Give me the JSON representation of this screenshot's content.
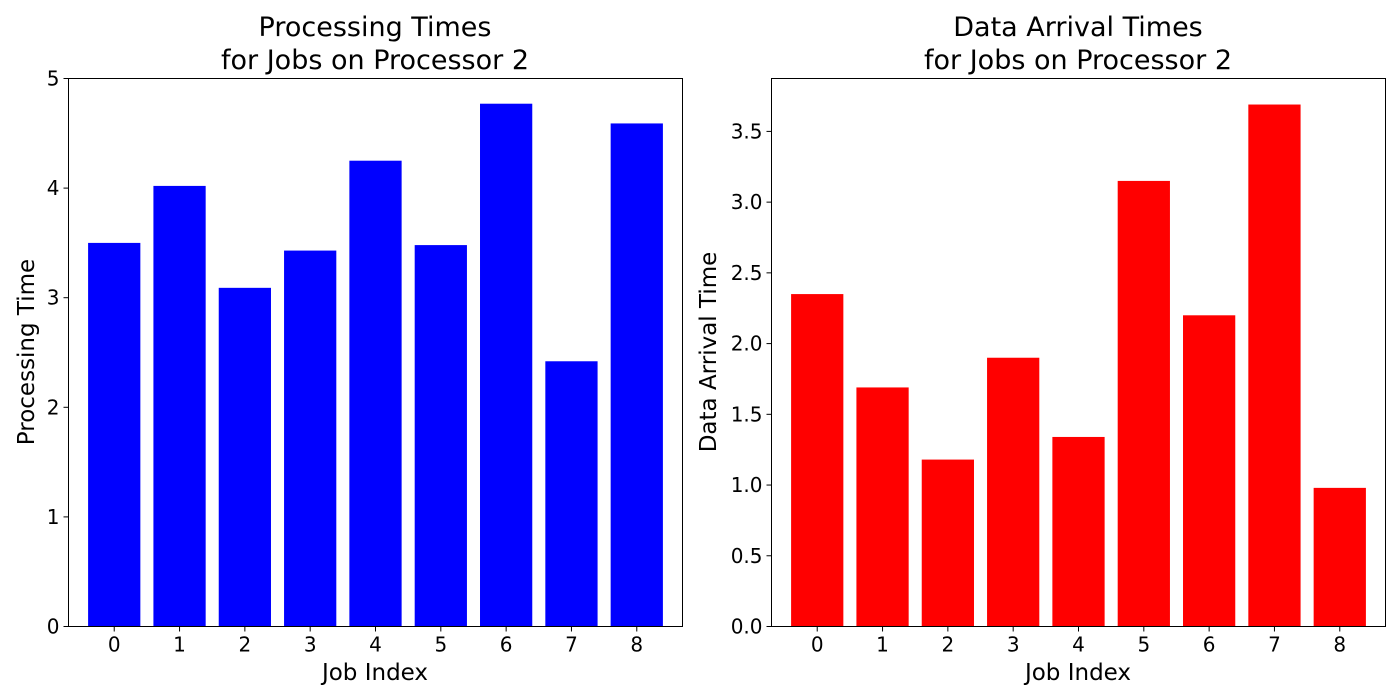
{
  "chart_data": [
    {
      "type": "bar",
      "title_lines": [
        "Processing Times",
        "for Jobs on Processor 2"
      ],
      "xlabel": "Job Index",
      "ylabel": "Processing Time",
      "categories": [
        "0",
        "1",
        "2",
        "3",
        "4",
        "5",
        "6",
        "7",
        "8"
      ],
      "values": [
        3.5,
        4.02,
        3.09,
        3.43,
        4.25,
        3.48,
        4.77,
        2.42,
        4.59
      ],
      "ylim": [
        0,
        5
      ],
      "yticks": [
        0,
        1,
        2,
        3,
        4,
        5
      ],
      "ytick_labels": [
        "0",
        "1",
        "2",
        "3",
        "4",
        "5"
      ],
      "color": "#0000ff",
      "grid": false
    },
    {
      "type": "bar",
      "title_lines": [
        "Data Arrival Times",
        "for Jobs on Processor 2"
      ],
      "xlabel": "Job Index",
      "ylabel": "Data Arrival Time",
      "categories": [
        "0",
        "1",
        "2",
        "3",
        "4",
        "5",
        "6",
        "7",
        "8"
      ],
      "values": [
        2.35,
        1.69,
        1.18,
        1.9,
        1.34,
        3.15,
        2.2,
        3.69,
        0.98
      ],
      "ylim": [
        0,
        3.874
      ],
      "yticks": [
        0,
        0.5,
        1,
        1.5,
        2,
        2.5,
        3,
        3.5
      ],
      "ytick_labels": [
        "0.0",
        "0.5",
        "1.0",
        "1.5",
        "2.0",
        "2.5",
        "3.0",
        "3.5"
      ],
      "color": "#ff0000",
      "grid": false
    }
  ]
}
